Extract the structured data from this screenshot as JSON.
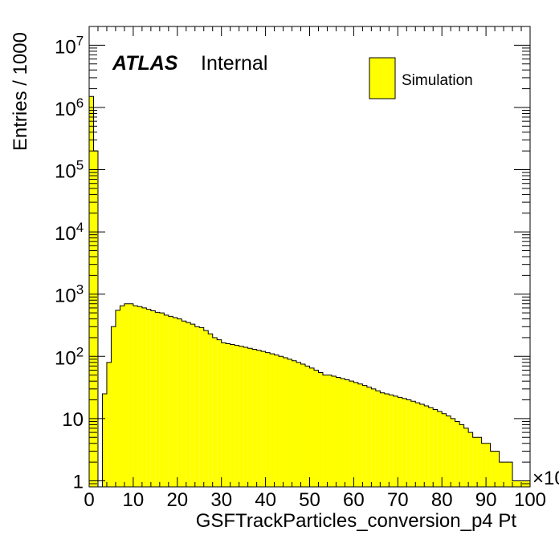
{
  "chart_data": {
    "type": "bar",
    "histogram_style": "step-filled",
    "xlabel": "GSFTrackParticles_conversion_p4 Pt",
    "ylabel": "Entries / 1000",
    "x_multiplier_label": "×10",
    "xlim": [
      0,
      100
    ],
    "ylim": [
      0.8,
      20000000
    ],
    "y_scale": "log",
    "x_ticks": [
      "0",
      "10",
      "20",
      "30",
      "40",
      "50",
      "60",
      "70",
      "80",
      "90",
      "100"
    ],
    "y_ticks": [
      {
        "base": "",
        "exp": "",
        "label": "1",
        "value": 1
      },
      {
        "base": "",
        "exp": "",
        "label": "10",
        "value": 10
      },
      {
        "base": "10",
        "exp": "2",
        "label": "",
        "value": 100
      },
      {
        "base": "10",
        "exp": "3",
        "label": "",
        "value": 1000
      },
      {
        "base": "10",
        "exp": "4",
        "label": "",
        "value": 10000
      },
      {
        "base": "10",
        "exp": "5",
        "label": "",
        "value": 100000
      },
      {
        "base": "10",
        "exp": "6",
        "label": "",
        "value": 1000000
      },
      {
        "base": "10",
        "exp": "7",
        "label": "",
        "value": 10000000
      }
    ],
    "bin_width": 1,
    "values": [
      1500000,
      200000,
      0,
      25,
      80,
      300,
      550,
      650,
      700,
      700,
      650,
      630,
      600,
      570,
      540,
      510,
      500,
      460,
      440,
      420,
      400,
      370,
      350,
      330,
      300,
      290,
      260,
      230,
      200,
      185,
      165,
      160,
      155,
      150,
      145,
      140,
      135,
      130,
      125,
      120,
      115,
      110,
      105,
      100,
      95,
      90,
      85,
      80,
      75,
      70,
      65,
      60,
      55,
      50,
      50,
      48,
      46,
      44,
      42,
      40,
      38,
      36,
      34,
      32,
      30,
      28,
      26,
      25,
      24,
      23,
      22,
      21,
      20,
      19,
      18,
      17,
      16,
      15,
      14,
      13,
      12,
      11,
      10,
      9,
      8,
      7,
      6,
      5,
      5,
      4,
      4,
      3,
      3,
      2,
      2,
      2,
      1,
      1,
      1,
      1
    ],
    "series": [
      {
        "name": "Simulation",
        "color": "#ffff00",
        "edge_color": "#000000"
      }
    ],
    "legend": {
      "position": "top-right",
      "entries": [
        "Simulation"
      ]
    },
    "annotation": {
      "atlas": "ATLAS",
      "status": "Internal"
    },
    "grid": false
  }
}
